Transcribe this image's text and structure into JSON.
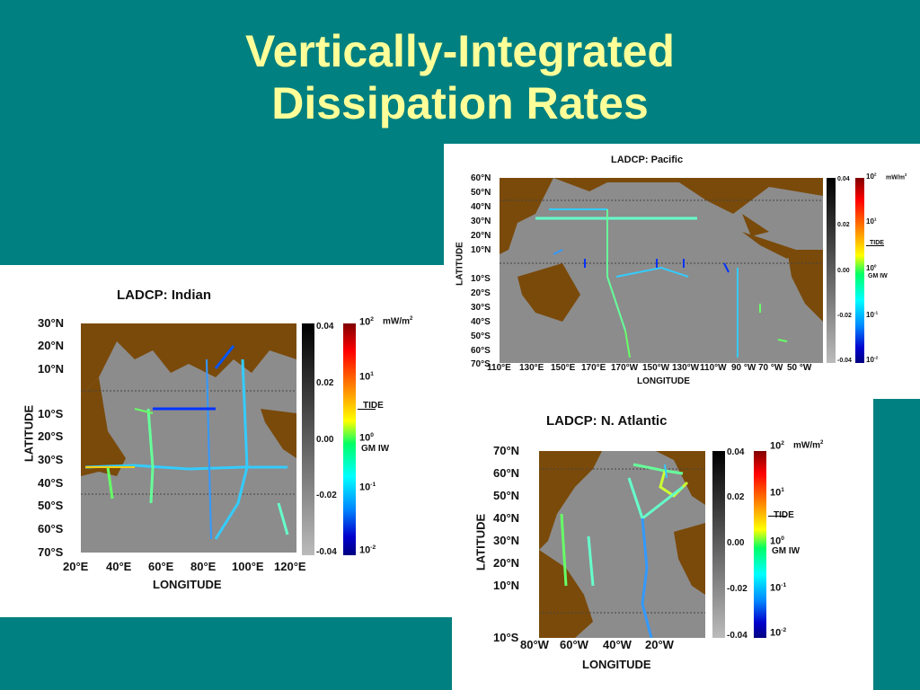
{
  "slide": {
    "title_line1": "Vertically-Integrated",
    "title_line2": "Dissipation Rates",
    "background_color": "#008080",
    "title_color": "#ffff99"
  },
  "indian": {
    "title": "LADCP:  Indian",
    "lat_labels": [
      "30°N",
      "20°N",
      "10°N",
      "10°S",
      "20°S",
      "30°S",
      "40°S",
      "50°S",
      "60°S",
      "70°S"
    ],
    "lon_labels": [
      "20°E",
      "40°E",
      "60°E",
      "80°E",
      "100°E",
      "120°E"
    ],
    "xlabel": "LONGITUDE",
    "ylabel": "LATITUDE",
    "grey_ticks": [
      "0.04",
      "0.02",
      "0.00",
      "-0.02",
      "-0.04"
    ],
    "color_ticks": {
      "top": "10",
      "top_exp": "2",
      "unit": "mW/m",
      "unit_exp": "2",
      "t1": "10",
      "t1_exp": "1",
      "tide": "TIDE",
      "t0": "10",
      "t0_exp": "0",
      "gmiw": "GM IW",
      "tm1": "10",
      "tm1_exp": "-1",
      "tm2": "10",
      "tm2_exp": "-2"
    }
  },
  "pacific": {
    "title": "LADCP:  Pacific",
    "lat_labels": [
      "60°N",
      "50°N",
      "40°N",
      "30°N",
      "20°N",
      "10°N",
      "10°S",
      "20°S",
      "30°S",
      "40°S",
      "50°S",
      "60°S",
      "70°S"
    ],
    "lon_labels": [
      "110°E",
      "130°E",
      "150°E",
      "170°E",
      "170°W",
      "150°W",
      "130°W",
      "110°W",
      "90 °W",
      "70 °W",
      "50 °W"
    ],
    "xlabel": "LONGITUDE",
    "ylabel": "LATITUDE",
    "grey_ticks": [
      "0.04",
      "0.02",
      "0.00",
      "-0.02",
      "-0.04"
    ],
    "color_ticks": {
      "top": "10",
      "top_exp": "2",
      "unit": "mW/m",
      "unit_exp": "2",
      "t1": "10",
      "t1_exp": "1",
      "tide": "TIDE",
      "t0": "10",
      "t0_exp": "0",
      "gmiw": "GM IW",
      "tm1": "10",
      "tm1_exp": "-1",
      "tm2": "10",
      "tm2_exp": "-2"
    }
  },
  "atlantic": {
    "title": "LADCP:  N. Atlantic",
    "lat_labels": [
      "70°N",
      "60°N",
      "50°N",
      "40°N",
      "30°N",
      "20°N",
      "10°N",
      "10°S"
    ],
    "lon_labels": [
      "80°W",
      "60°W",
      "40°W",
      "20°W"
    ],
    "xlabel": "LONGITUDE",
    "ylabel": "LATITUDE",
    "grey_ticks": [
      "0.04",
      "0.02",
      "0.00",
      "-0.02",
      "-0.04"
    ],
    "color_ticks": {
      "top": "10",
      "top_exp": "2",
      "unit": "mW/m",
      "unit_exp": "2",
      "t1": "10",
      "t1_exp": "1",
      "tide": "TIDE",
      "t0": "10",
      "t0_exp": "0",
      "gmiw": "GM IW",
      "tm1": "10",
      "tm1_exp": "-1",
      "tm2": "10",
      "tm2_exp": "-2"
    }
  },
  "colors": {
    "land": "#7a4a0a",
    "ocean": "#8c8c8c",
    "track_low": "#33ccff",
    "track_mid": "#66ff66",
    "track_high": "#ffcc00"
  }
}
